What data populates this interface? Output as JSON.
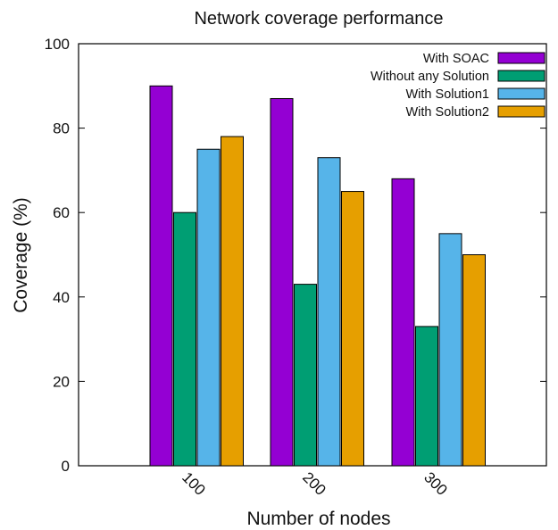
{
  "chart_data": {
    "type": "bar",
    "title": "Network coverage performance",
    "xlabel": "Number of nodes",
    "ylabel": "Coverage (%)",
    "categories": [
      "100",
      "200",
      "300"
    ],
    "ylim": [
      0,
      100
    ],
    "yticks": [
      0,
      20,
      40,
      60,
      80,
      100
    ],
    "grid": false,
    "legend_position": "top-right",
    "series": [
      {
        "name": "With SOAC",
        "color": "#9400d3",
        "values": [
          90,
          87,
          68
        ]
      },
      {
        "name": "Without any Solution",
        "color": "#009e73",
        "values": [
          60,
          43,
          33
        ]
      },
      {
        "name": "With Solution1",
        "color": "#56b4e9",
        "values": [
          75,
          73,
          55
        ]
      },
      {
        "name": "With Solution2",
        "color": "#e69f00",
        "values": [
          78,
          65,
          50
        ]
      }
    ]
  }
}
